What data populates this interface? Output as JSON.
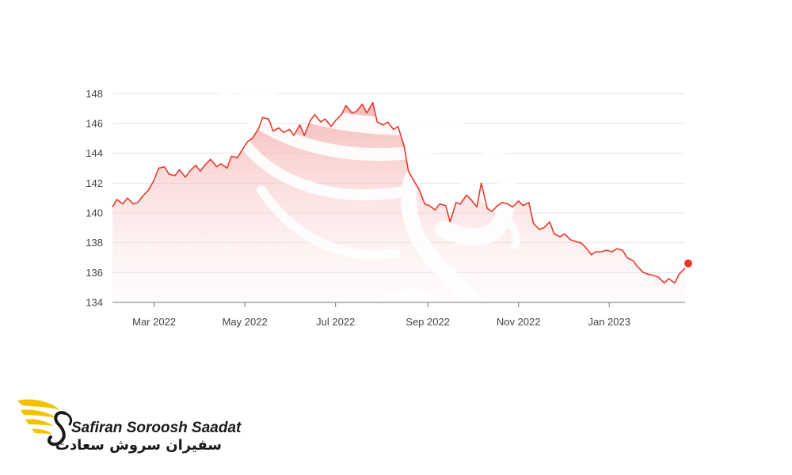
{
  "chart_data": {
    "type": "line",
    "title": "",
    "xlabel": "",
    "ylabel": "",
    "x_tick_labels": [
      "Mar 2022",
      "May 2022",
      "Jul 2022",
      "Sep 2022",
      "Nov 2022",
      "Jan 2023"
    ],
    "y_ticks": [
      134,
      136,
      138,
      140,
      142,
      144,
      146,
      148
    ],
    "ylim": [
      134,
      148.6
    ],
    "xlim": [
      "2022-02-01",
      "2023-02-21"
    ],
    "grid": true,
    "legend": "none",
    "series": [
      {
        "color": "#e8392b",
        "points": [
          [
            "2022-02-01",
            140.4
          ],
          [
            "2022-02-04",
            140.9
          ],
          [
            "2022-02-08",
            140.6
          ],
          [
            "2022-02-11",
            141.0
          ],
          [
            "2022-02-15",
            140.6
          ],
          [
            "2022-02-18",
            140.7
          ],
          [
            "2022-02-22",
            141.2
          ],
          [
            "2022-02-25",
            141.5
          ],
          [
            "2022-03-01",
            142.2
          ],
          [
            "2022-03-04",
            143.0
          ],
          [
            "2022-03-08",
            143.1
          ],
          [
            "2022-03-11",
            142.6
          ],
          [
            "2022-03-15",
            142.5
          ],
          [
            "2022-03-18",
            142.9
          ],
          [
            "2022-03-22",
            142.4
          ],
          [
            "2022-03-25",
            142.8
          ],
          [
            "2022-03-29",
            143.2
          ],
          [
            "2022-04-01",
            142.8
          ],
          [
            "2022-04-05",
            143.3
          ],
          [
            "2022-04-08",
            143.6
          ],
          [
            "2022-04-12",
            143.1
          ],
          [
            "2022-04-15",
            143.3
          ],
          [
            "2022-04-19",
            143.0
          ],
          [
            "2022-04-22",
            143.8
          ],
          [
            "2022-04-26",
            143.7
          ],
          [
            "2022-04-29",
            144.2
          ],
          [
            "2022-05-03",
            144.8
          ],
          [
            "2022-05-06",
            145.0
          ],
          [
            "2022-05-10",
            145.6
          ],
          [
            "2022-05-13",
            146.4
          ],
          [
            "2022-05-17",
            146.3
          ],
          [
            "2022-05-20",
            145.5
          ],
          [
            "2022-05-24",
            145.7
          ],
          [
            "2022-05-27",
            145.4
          ],
          [
            "2022-05-31",
            145.6
          ],
          [
            "2022-06-03",
            145.2
          ],
          [
            "2022-06-07",
            145.9
          ],
          [
            "2022-06-10",
            145.2
          ],
          [
            "2022-06-14",
            146.2
          ],
          [
            "2022-06-17",
            146.6
          ],
          [
            "2022-06-21",
            146.1
          ],
          [
            "2022-06-24",
            146.3
          ],
          [
            "2022-06-28",
            145.8
          ],
          [
            "2022-07-01",
            146.2
          ],
          [
            "2022-07-05",
            146.6
          ],
          [
            "2022-07-08",
            147.2
          ],
          [
            "2022-07-12",
            146.7
          ],
          [
            "2022-07-15",
            146.8
          ],
          [
            "2022-07-19",
            147.3
          ],
          [
            "2022-07-22",
            146.7
          ],
          [
            "2022-07-26",
            147.4
          ],
          [
            "2022-07-29",
            146.1
          ],
          [
            "2022-08-02",
            145.9
          ],
          [
            "2022-08-05",
            146.1
          ],
          [
            "2022-08-09",
            145.6
          ],
          [
            "2022-08-12",
            145.8
          ],
          [
            "2022-08-16",
            144.5
          ],
          [
            "2022-08-19",
            142.8
          ],
          [
            "2022-08-23",
            142.1
          ],
          [
            "2022-08-26",
            141.6
          ],
          [
            "2022-08-30",
            140.6
          ],
          [
            "2022-09-02",
            140.5
          ],
          [
            "2022-09-06",
            140.2
          ],
          [
            "2022-09-09",
            140.6
          ],
          [
            "2022-09-13",
            140.5
          ],
          [
            "2022-09-16",
            139.4
          ],
          [
            "2022-09-20",
            140.7
          ],
          [
            "2022-09-23",
            140.6
          ],
          [
            "2022-09-27",
            141.2
          ],
          [
            "2022-09-30",
            140.9
          ],
          [
            "2022-10-04",
            140.4
          ],
          [
            "2022-10-07",
            142.0
          ],
          [
            "2022-10-11",
            140.3
          ],
          [
            "2022-10-14",
            140.1
          ],
          [
            "2022-10-18",
            140.5
          ],
          [
            "2022-10-21",
            140.7
          ],
          [
            "2022-10-25",
            140.6
          ],
          [
            "2022-10-28",
            140.4
          ],
          [
            "2022-11-01",
            140.8
          ],
          [
            "2022-11-04",
            140.5
          ],
          [
            "2022-11-08",
            140.7
          ],
          [
            "2022-11-11",
            139.3
          ],
          [
            "2022-11-15",
            138.9
          ],
          [
            "2022-11-18",
            139.0
          ],
          [
            "2022-11-22",
            139.4
          ],
          [
            "2022-11-25",
            138.6
          ],
          [
            "2022-11-29",
            138.4
          ],
          [
            "2022-12-02",
            138.6
          ],
          [
            "2022-12-06",
            138.2
          ],
          [
            "2022-12-09",
            138.1
          ],
          [
            "2022-12-13",
            138.0
          ],
          [
            "2022-12-16",
            137.7
          ],
          [
            "2022-12-20",
            137.2
          ],
          [
            "2022-12-23",
            137.4
          ],
          [
            "2022-12-27",
            137.4
          ],
          [
            "2022-12-30",
            137.5
          ],
          [
            "2023-01-03",
            137.4
          ],
          [
            "2023-01-06",
            137.6
          ],
          [
            "2023-01-10",
            137.5
          ],
          [
            "2023-01-13",
            137.0
          ],
          [
            "2023-01-17",
            136.8
          ],
          [
            "2023-01-20",
            136.4
          ],
          [
            "2023-01-24",
            136.0
          ],
          [
            "2023-01-27",
            135.9
          ],
          [
            "2023-01-31",
            135.8
          ],
          [
            "2023-02-03",
            135.7
          ],
          [
            "2023-02-07",
            135.3
          ],
          [
            "2023-02-10",
            135.6
          ],
          [
            "2023-02-14",
            135.3
          ],
          [
            "2023-02-17",
            135.9
          ],
          [
            "2023-02-21",
            136.3
          ]
        ]
      }
    ]
  },
  "logo": {
    "name_latin": "Safiran Soroosh Saadat",
    "name_persian": "سفیران سروش سعادت",
    "icon": "winged-s-logo-icon",
    "colors": {
      "gold": "#f2c200",
      "dark": "#1a1a1a"
    }
  },
  "watermark": {
    "icon": "winged-s-watermark-icon"
  }
}
